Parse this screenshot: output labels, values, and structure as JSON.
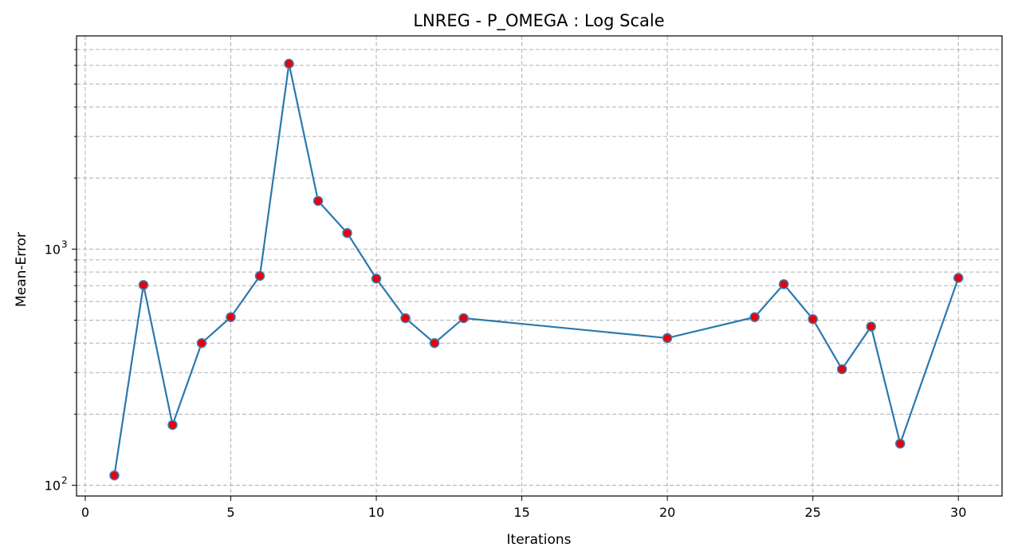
{
  "chart_data": {
    "type": "line",
    "title": "LNREG - P_OMEGA : Log Scale",
    "xlabel": "Iterations",
    "ylabel": "Mean-Error",
    "yscale": "log",
    "xlim": [
      -0.3,
      31.5
    ],
    "ylim": [
      90,
      8000
    ],
    "grid": true,
    "x_ticks": [
      0,
      5,
      10,
      15,
      20,
      25,
      30
    ],
    "x_tick_labels": [
      "0",
      "5",
      "10",
      "15",
      "20",
      "25",
      "30"
    ],
    "y_major_ticks": [
      100,
      1000
    ],
    "y_tick_labels": [
      "10",
      "10"
    ],
    "y_tick_exponents": [
      "2",
      "3"
    ],
    "y_minor_ticks": [
      200,
      300,
      400,
      500,
      600,
      700,
      800,
      900,
      2000,
      3000,
      4000,
      5000,
      6000,
      7000
    ],
    "series": [
      {
        "line_color": "#2a78ad",
        "marker_color": "#e8000b",
        "x": [
          1,
          2,
          3,
          4,
          5,
          6,
          7,
          8,
          9,
          10,
          11,
          12,
          13,
          20,
          23,
          24,
          25,
          26,
          27,
          28,
          30
        ],
        "y": [
          110,
          705,
          180,
          400,
          515,
          770,
          6100,
          1600,
          1170,
          750,
          510,
          400,
          510,
          420,
          515,
          710,
          505,
          310,
          470,
          150,
          755
        ]
      }
    ]
  }
}
